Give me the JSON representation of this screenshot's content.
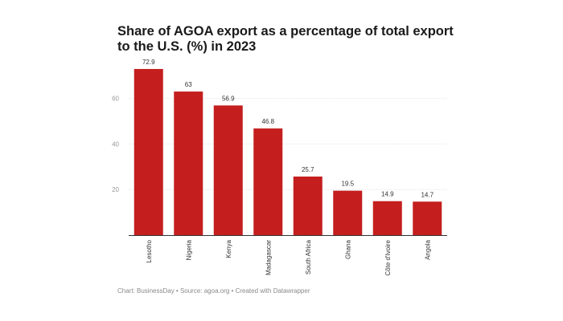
{
  "chart_data": {
    "type": "bar",
    "title": "Share of AGOA export as a percentage of total export to the U.S. (%) in 2023",
    "categories": [
      "Lesotho",
      "Nigeria",
      "Kenya",
      "Madagascar",
      "South Africa",
      "Ghana",
      "Côte d'Ivoire",
      "Angola"
    ],
    "values": [
      72.9,
      63,
      56.9,
      46.8,
      25.7,
      19.5,
      14.9,
      14.7
    ],
    "value_labels": [
      "72.9",
      "63",
      "56.9",
      "46.8",
      "25.7",
      "19.5",
      "14.9",
      "14.7"
    ],
    "yticks": [
      20,
      40,
      60
    ],
    "ylim": [
      0,
      80
    ],
    "xlabel": "",
    "ylabel": "",
    "grid": true,
    "bar_color": "#c41e1e"
  },
  "footer": {
    "source": "Chart: BusinessDay • Source: agoa.org • Created with Datawrapper"
  }
}
